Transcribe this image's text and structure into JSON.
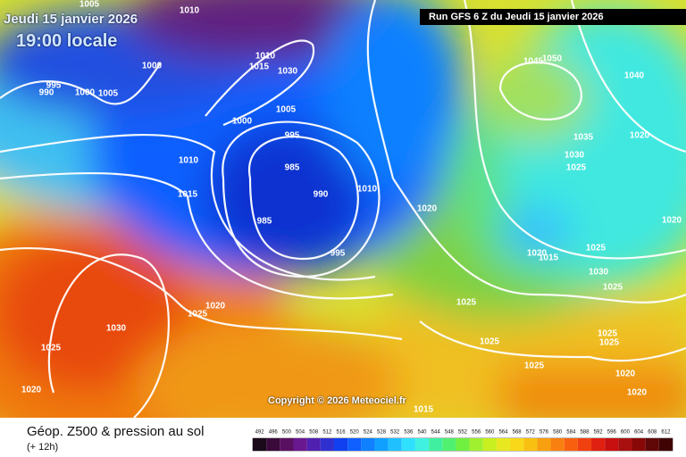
{
  "header": {
    "date": "Jeudi 15 janvier 2026",
    "time": "19:00 locale",
    "run": "Run GFS 6 Z du Jeudi 15 janvier 2026"
  },
  "isobar_labels": [
    "1005",
    "1010",
    "1000",
    "995",
    "990",
    "1000",
    "1005",
    "1010",
    "1015",
    "1030",
    "1000",
    "1005",
    "995",
    "985",
    "990",
    "985",
    "1010",
    "1015",
    "1010",
    "995",
    "1020",
    "1045",
    "1050",
    "1040",
    "1035",
    "1030",
    "1025",
    "1020",
    "1020",
    "1015",
    "1030",
    "1025",
    "1025",
    "1020",
    "1025",
    "1025",
    "1025",
    "1025",
    "1025",
    "1020",
    "1020",
    "1020",
    "1025",
    "1030",
    "1025",
    "1020",
    "1015"
  ],
  "copyright": "Copyright © 2026 Meteociel.fr",
  "footer": {
    "title": "Géop. Z500 & pression au sol",
    "subtitle": "(+ 12h)",
    "colorbar_labels": [
      492,
      496,
      500,
      504,
      508,
      512,
      516,
      520,
      524,
      528,
      532,
      536,
      540,
      544,
      548,
      552,
      556,
      560,
      564,
      568,
      572,
      576,
      580,
      584,
      588,
      592,
      596,
      600,
      604,
      608,
      612
    ]
  }
}
